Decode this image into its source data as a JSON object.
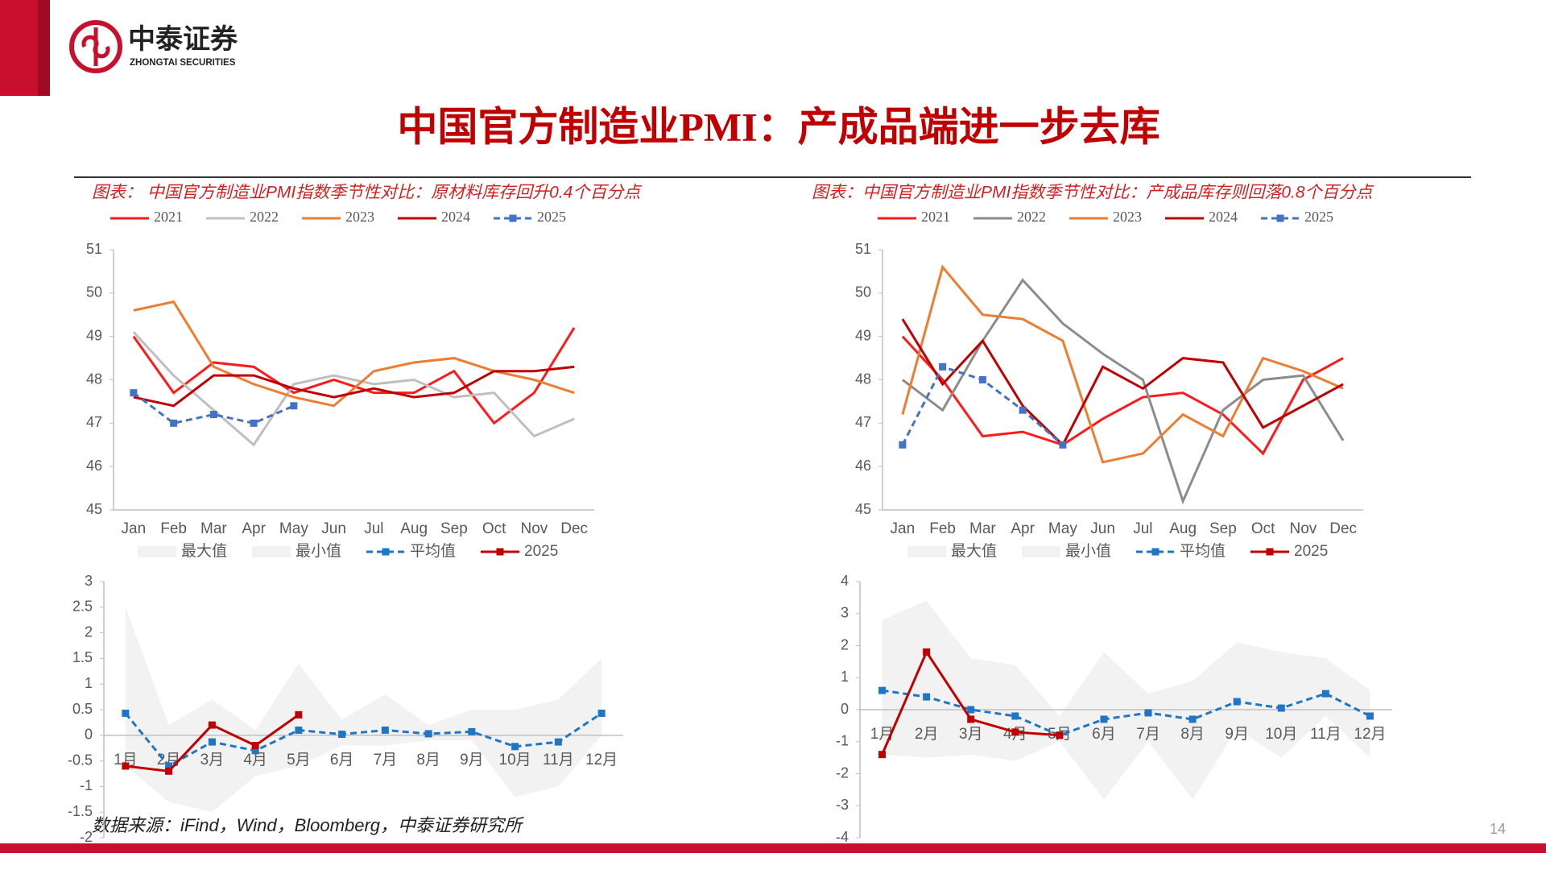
{
  "header": {
    "logo_cn": "中泰证券",
    "logo_en": "ZHONGTAI SECURITIES",
    "title": "中国官方制造业PMI：产成品端进一步去库"
  },
  "chart_data": [
    {
      "type": "line",
      "caption": "图表： 中国官方制造业PMI指数季节性对比：原材料库存回升0.4个百分点",
      "categories": [
        "Jan",
        "Feb",
        "Mar",
        "Apr",
        "May",
        "Jun",
        "Jul",
        "Aug",
        "Sep",
        "Oct",
        "Nov",
        "Dec"
      ],
      "ylim": [
        45,
        51
      ],
      "yticks": [
        45,
        46,
        47,
        48,
        49,
        50,
        51
      ],
      "series": [
        {
          "name": "2021",
          "color": "#ff1a1a",
          "values": [
            49.0,
            47.7,
            48.4,
            48.3,
            47.7,
            48.0,
            47.7,
            47.7,
            48.2,
            47.0,
            47.7,
            49.2
          ]
        },
        {
          "name": "2022",
          "color": "#bfbfbf",
          "values": [
            49.1,
            48.1,
            47.3,
            46.5,
            47.9,
            48.1,
            47.9,
            48.0,
            47.6,
            47.7,
            46.7,
            47.1
          ]
        },
        {
          "name": "2023",
          "color": "#ed7d31",
          "values": [
            49.6,
            49.8,
            48.3,
            47.9,
            47.6,
            47.4,
            48.2,
            48.4,
            48.5,
            48.2,
            48.0,
            47.7
          ]
        },
        {
          "name": "2024",
          "color": "#c00000",
          "values": [
            47.6,
            47.4,
            48.1,
            48.1,
            47.8,
            47.6,
            47.8,
            47.6,
            47.7,
            48.2,
            48.2,
            48.3
          ]
        },
        {
          "name": "2025",
          "color": "#4472c4",
          "dash": true,
          "marker": true,
          "values": [
            47.7,
            47.0,
            47.2,
            47.0,
            47.4,
            null,
            null,
            null,
            null,
            null,
            null,
            null
          ]
        }
      ]
    },
    {
      "type": "line",
      "categories": [
        "1月",
        "2月",
        "3月",
        "4月",
        "5月",
        "6月",
        "7月",
        "8月",
        "9月",
        "10月",
        "11月",
        "12月"
      ],
      "ylim": [
        -2,
        3
      ],
      "yticks": [
        -2,
        -1.5,
        -1,
        -0.5,
        0,
        0.5,
        1,
        1.5,
        2,
        2.5,
        3
      ],
      "series": [
        {
          "name": "最大值",
          "color": "#f2f2f2",
          "area": true,
          "values": [
            2.5,
            0.2,
            0.7,
            0.1,
            1.4,
            0.3,
            0.8,
            0.2,
            0.5,
            0.5,
            0.7,
            1.5
          ]
        },
        {
          "name": "最小值",
          "color": "#f2f2f2",
          "area": true,
          "values": [
            -0.6,
            -1.3,
            -1.5,
            -0.8,
            -0.6,
            -0.2,
            -0.2,
            -0.1,
            -0.1,
            -1.2,
            -1.0,
            0.0
          ]
        },
        {
          "name": "平均值",
          "color": "#1f77c4",
          "dash": true,
          "marker": true,
          "values": [
            0.43,
            -0.6,
            -0.13,
            -0.3,
            0.1,
            0.02,
            0.1,
            0.03,
            0.07,
            -0.22,
            -0.13,
            0.43
          ]
        },
        {
          "name": "2025",
          "color": "#c00000",
          "marker": true,
          "values": [
            -0.6,
            -0.7,
            0.2,
            -0.2,
            0.4,
            null,
            null,
            null,
            null,
            null,
            null,
            null
          ]
        }
      ]
    },
    {
      "type": "line",
      "caption": "图表：中国官方制造业PMI指数季节性对比：产成品库存则回落0.8个百分点",
      "categories": [
        "Jan",
        "Feb",
        "Mar",
        "Apr",
        "May",
        "Jun",
        "Jul",
        "Aug",
        "Sep",
        "Oct",
        "Nov",
        "Dec"
      ],
      "ylim": [
        45,
        51
      ],
      "yticks": [
        45,
        46,
        47,
        48,
        49,
        50,
        51
      ],
      "series": [
        {
          "name": "2021",
          "color": "#ff1a1a",
          "values": [
            49.0,
            48.0,
            46.7,
            46.8,
            46.5,
            47.1,
            47.6,
            47.7,
            47.2,
            46.3,
            48.0,
            48.5
          ]
        },
        {
          "name": "2022",
          "color": "#8c8c8c",
          "values": [
            48.0,
            47.3,
            48.9,
            50.3,
            49.3,
            48.6,
            48.0,
            45.2,
            47.3,
            48.0,
            48.1,
            46.6
          ]
        },
        {
          "name": "2023",
          "color": "#ed7d31",
          "values": [
            47.2,
            50.6,
            49.5,
            49.4,
            48.9,
            46.1,
            46.3,
            47.2,
            46.7,
            48.5,
            48.2,
            47.8
          ]
        },
        {
          "name": "2024",
          "color": "#c00000",
          "values": [
            49.4,
            47.9,
            48.9,
            47.4,
            46.5,
            48.3,
            47.8,
            48.5,
            48.4,
            46.9,
            47.4,
            47.9
          ]
        },
        {
          "name": "2025",
          "color": "#4472c4",
          "dash": true,
          "marker": true,
          "values": [
            46.5,
            48.3,
            48.0,
            47.3,
            46.5,
            null,
            null,
            null,
            null,
            null,
            null,
            null
          ]
        }
      ]
    },
    {
      "type": "line",
      "categories": [
        "1月",
        "2月",
        "3月",
        "4月",
        "5月",
        "6月",
        "7月",
        "8月",
        "9月",
        "10月",
        "11月",
        "12月"
      ],
      "ylim": [
        -4,
        4
      ],
      "yticks": [
        -4,
        -3,
        -2,
        -1,
        0,
        1,
        2,
        3,
        4
      ],
      "series": [
        {
          "name": "最大值",
          "color": "#f2f2f2",
          "area": true,
          "values": [
            2.8,
            3.4,
            1.6,
            1.4,
            -0.2,
            1.8,
            0.5,
            0.9,
            2.1,
            1.8,
            1.6,
            0.6
          ]
        },
        {
          "name": "最小值",
          "color": "#f2f2f2",
          "area": true,
          "values": [
            -1.4,
            -1.5,
            -1.4,
            -1.6,
            -1.0,
            -2.8,
            -1.0,
            -2.8,
            -0.6,
            -1.5,
            -0.2,
            -1.5
          ]
        },
        {
          "name": "平均值",
          "color": "#1f77c4",
          "dash": true,
          "marker": true,
          "values": [
            0.6,
            0.4,
            0.0,
            -0.2,
            -0.8,
            -0.3,
            -0.1,
            -0.3,
            0.25,
            0.05,
            0.5,
            -0.2
          ]
        },
        {
          "name": "2025",
          "color": "#c00000",
          "marker": true,
          "values": [
            -1.4,
            1.8,
            -0.3,
            -0.7,
            -0.8,
            null,
            null,
            null,
            null,
            null,
            null,
            null
          ]
        }
      ]
    }
  ],
  "footer": {
    "source": "数据来源：iFind，Wind，Bloomberg，中泰证券研究所",
    "page_number": 14
  }
}
